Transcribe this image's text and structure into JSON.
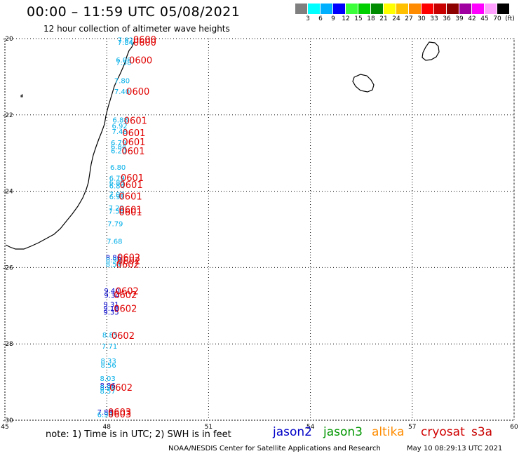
{
  "header": {
    "title": "00:00 – 11:59 UTC 05/08/2021",
    "subtitle": "12 hour collection of altimeter wave heights"
  },
  "legend": {
    "swatches": [
      {
        "color": "#7f7f7f",
        "label": "3"
      },
      {
        "color": "#00ffff",
        "label": "6"
      },
      {
        "color": "#00b0ff",
        "label": "9"
      },
      {
        "color": "#0000ff",
        "label": "12"
      },
      {
        "color": "#3cff3c",
        "label": "15"
      },
      {
        "color": "#00d000",
        "label": "18"
      },
      {
        "color": "#008c00",
        "label": "21"
      },
      {
        "color": "#ffff00",
        "label": "24"
      },
      {
        "color": "#ffc000",
        "label": "27"
      },
      {
        "color": "#ff8c00",
        "label": "30"
      },
      {
        "color": "#ff0000",
        "label": "33"
      },
      {
        "color": "#c80000",
        "label": "36"
      },
      {
        "color": "#8c0000",
        "label": "39"
      },
      {
        "color": "#a000a0",
        "label": "42"
      },
      {
        "color": "#ff00ff",
        "label": "45"
      },
      {
        "color": "#ffa0ff",
        "label": "70"
      },
      {
        "color": "#000000",
        "label": "(ft)"
      }
    ]
  },
  "axes": {
    "lat_ticks": [
      "-20",
      "-22",
      "-24",
      "-26",
      "-28",
      "-30"
    ],
    "lon_ticks": [
      "45",
      "48",
      "51",
      "54",
      "57",
      "60"
    ]
  },
  "observations": [
    {
      "lon": 48.55,
      "lat": -20.03,
      "swh": "7.82",
      "color": "#00aee8"
    },
    {
      "lon": 48.55,
      "lat": -20.09,
      "swh": "7.84",
      "color": "#00aee8"
    },
    {
      "lon": 48.5,
      "lat": -20.55,
      "swh": "6.08",
      "color": "#00aee8"
    },
    {
      "lon": 48.5,
      "lat": -20.62,
      "swh": "7.58",
      "color": "#00aee8"
    },
    {
      "lon": 48.45,
      "lat": -21.09,
      "swh": "7.80",
      "color": "#00aee8"
    },
    {
      "lon": 48.45,
      "lat": -21.38,
      "swh": "7.40",
      "color": "#00aee8"
    },
    {
      "lon": 48.4,
      "lat": -22.12,
      "swh": "6.88",
      "color": "#00aee8"
    },
    {
      "lon": 48.38,
      "lat": -22.28,
      "swh": "6.92",
      "color": "#00aee8"
    },
    {
      "lon": 48.38,
      "lat": -22.43,
      "swh": "7.48",
      "color": "#00aee8"
    },
    {
      "lon": 48.35,
      "lat": -22.72,
      "swh": "6.79",
      "color": "#00aee8"
    },
    {
      "lon": 48.35,
      "lat": -22.82,
      "swh": "6.84",
      "color": "#00aee8"
    },
    {
      "lon": 48.35,
      "lat": -22.93,
      "swh": "6.20",
      "color": "#00aee8"
    },
    {
      "lon": 48.33,
      "lat": -23.36,
      "swh": "6.80",
      "color": "#00aee8"
    },
    {
      "lon": 48.3,
      "lat": -23.65,
      "swh": "6.79",
      "color": "#00aee8"
    },
    {
      "lon": 48.3,
      "lat": -23.76,
      "swh": "6.89",
      "color": "#00aee8"
    },
    {
      "lon": 48.3,
      "lat": -23.85,
      "swh": "6.84",
      "color": "#00aee8"
    },
    {
      "lon": 48.3,
      "lat": -24.07,
      "swh": "7.02",
      "color": "#00aee8"
    },
    {
      "lon": 48.3,
      "lat": -24.14,
      "swh": "6.92",
      "color": "#00aee8"
    },
    {
      "lon": 48.28,
      "lat": -24.43,
      "swh": "7.22",
      "color": "#00aee8"
    },
    {
      "lon": 48.28,
      "lat": -24.51,
      "swh": "7.56",
      "color": "#00aee8"
    },
    {
      "lon": 48.25,
      "lat": -24.84,
      "swh": "7.79",
      "color": "#00aee8"
    },
    {
      "lon": 48.23,
      "lat": -25.3,
      "swh": "7.68",
      "color": "#00aee8"
    },
    {
      "lon": 48.2,
      "lat": -25.73,
      "swh": "8.86",
      "color": "#0000c8"
    },
    {
      "lon": 48.2,
      "lat": -25.79,
      "swh": "8.96",
      "color": "#00aee8"
    },
    {
      "lon": 48.2,
      "lat": -25.9,
      "swh": "8.54",
      "color": "#00aee8"
    },
    {
      "lon": 48.15,
      "lat": -26.6,
      "swh": "9.40",
      "color": "#0000c8"
    },
    {
      "lon": 48.15,
      "lat": -26.72,
      "swh": "9.34",
      "color": "#0000c8"
    },
    {
      "lon": 48.13,
      "lat": -26.96,
      "swh": "9.31",
      "color": "#0000c8"
    },
    {
      "lon": 48.13,
      "lat": -27.06,
      "swh": "9.18",
      "color": "#0000c8"
    },
    {
      "lon": 48.13,
      "lat": -27.16,
      "swh": "9.35",
      "color": "#0000c8"
    },
    {
      "lon": 48.1,
      "lat": -27.76,
      "swh": "8.85",
      "color": "#00aee8"
    },
    {
      "lon": 48.08,
      "lat": -28.05,
      "swh": "7.71",
      "color": "#00aee8"
    },
    {
      "lon": 48.05,
      "lat": -28.44,
      "swh": "8.33",
      "color": "#00aee8"
    },
    {
      "lon": 48.05,
      "lat": -28.55,
      "swh": "8.56",
      "color": "#00aee8"
    },
    {
      "lon": 48.03,
      "lat": -28.9,
      "swh": "8.03",
      "color": "#00aee8"
    },
    {
      "lon": 48.03,
      "lat": -29.08,
      "swh": "8.86",
      "color": "#0000c8"
    },
    {
      "lon": 48.03,
      "lat": -29.14,
      "swh": "8.96",
      "color": "#00aee8"
    },
    {
      "lon": 48.03,
      "lat": -29.23,
      "swh": "8.57",
      "color": "#00aee8"
    },
    {
      "lon": 47.95,
      "lat": -29.78,
      "swh": "7.88",
      "color": "#0000c8"
    },
    {
      "lon": 47.95,
      "lat": -29.84,
      "swh": "6.98",
      "color": "#00aee8"
    }
  ],
  "time_labels": [
    {
      "lon": 49.12,
      "lat": -20.02,
      "text": "0600"
    },
    {
      "lon": 49.12,
      "lat": -20.09,
      "text": "0600"
    },
    {
      "lon": 49.0,
      "lat": -20.56,
      "text": "0600"
    },
    {
      "lon": 48.92,
      "lat": -21.38,
      "text": "0600"
    },
    {
      "lon": 48.85,
      "lat": -22.14,
      "text": "0601"
    },
    {
      "lon": 48.8,
      "lat": -22.46,
      "text": "0601"
    },
    {
      "lon": 48.8,
      "lat": -22.7,
      "text": "0601"
    },
    {
      "lon": 48.78,
      "lat": -22.94,
      "text": "0601"
    },
    {
      "lon": 48.75,
      "lat": -23.64,
      "text": "0601"
    },
    {
      "lon": 48.72,
      "lat": -23.82,
      "text": "0601"
    },
    {
      "lon": 48.7,
      "lat": -24.13,
      "text": "0601"
    },
    {
      "lon": 48.7,
      "lat": -24.48,
      "text": "0601"
    },
    {
      "lon": 48.7,
      "lat": -24.54,
      "text": "0601"
    },
    {
      "lon": 48.65,
      "lat": -25.73,
      "text": "0602"
    },
    {
      "lon": 48.65,
      "lat": -25.82,
      "text": "0602"
    },
    {
      "lon": 48.62,
      "lat": -25.91,
      "text": "0602"
    },
    {
      "lon": 48.6,
      "lat": -26.61,
      "text": "0602"
    },
    {
      "lon": 48.55,
      "lat": -26.71,
      "text": "0602"
    },
    {
      "lon": 48.55,
      "lat": -27.07,
      "text": "0602"
    },
    {
      "lon": 48.48,
      "lat": -27.78,
      "text": "0602"
    },
    {
      "lon": 48.42,
      "lat": -29.14,
      "text": "0602"
    },
    {
      "lon": 48.38,
      "lat": -29.78,
      "text": "0603"
    },
    {
      "lon": 48.38,
      "lat": -29.83,
      "text": "0603"
    }
  ],
  "notes": {
    "note": "note: 1) Time is in UTC; 2) SWH is in feet",
    "satellites": [
      {
        "name": "jason2",
        "color": "#0000c8"
      },
      {
        "name": "jason3",
        "color": "#009600"
      },
      {
        "name": "altika",
        "color": "#ff8c00"
      },
      {
        "name": "cryosat",
        "color": "#d00000"
      },
      {
        "name": "s3a",
        "color": "#c80000"
      }
    ],
    "footer_left": "NOAA/NESDIS Center for Satellite Applications and Research",
    "footer_right": "May 10 08:29:13 UTC 2021"
  }
}
